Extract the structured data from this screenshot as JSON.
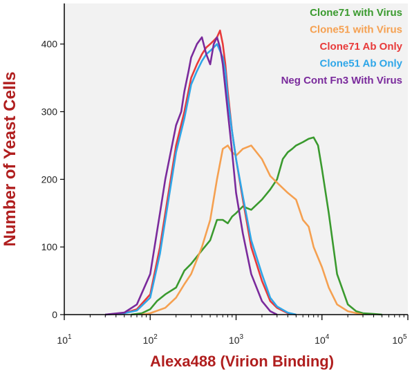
{
  "chart_data": {
    "type": "line",
    "title": "",
    "xlabel": "Alexa488 (Virion Binding)",
    "ylabel": "Number of Yeast Cells",
    "x_scale": "log",
    "xlim": [
      10,
      100000
    ],
    "ylim": [
      0,
      460
    ],
    "x_ticks": [
      10,
      100,
      1000,
      10000,
      100000
    ],
    "x_tick_labels": [
      {
        "base": "10",
        "exp": "1"
      },
      {
        "base": "10",
        "exp": "2"
      },
      {
        "base": "10",
        "exp": "3"
      },
      {
        "base": "10",
        "exp": "4"
      },
      {
        "base": "10",
        "exp": "5"
      }
    ],
    "y_ticks": [
      0,
      100,
      200,
      300,
      400
    ],
    "y_tick_labels": [
      "0",
      "100",
      "200",
      "300",
      "400"
    ],
    "grid": false,
    "background": "#f2f2f2",
    "legend_position": "top-right",
    "series": [
      {
        "name": "Clone71 with Virus",
        "color": "#3a9a2e",
        "x": [
          60,
          80,
          100,
          120,
          150,
          200,
          250,
          300,
          400,
          500,
          600,
          700,
          800,
          900,
          1000,
          1200,
          1500,
          2000,
          2500,
          3000,
          3500,
          4000,
          4500,
          5000,
          6000,
          7000,
          8000,
          9000,
          10000,
          12000,
          15000,
          20000,
          25000,
          30000,
          40000,
          50000
        ],
        "y": [
          0,
          2,
          8,
          20,
          30,
          40,
          65,
          75,
          95,
          110,
          140,
          140,
          135,
          145,
          150,
          160,
          155,
          170,
          185,
          200,
          230,
          240,
          245,
          250,
          255,
          260,
          262,
          250,
          215,
          150,
          60,
          15,
          5,
          2,
          1,
          0
        ]
      },
      {
        "name": "Clone51 with Virus",
        "color": "#f5a050",
        "x": [
          80,
          100,
          150,
          200,
          250,
          300,
          400,
          500,
          600,
          700,
          800,
          900,
          1000,
          1200,
          1500,
          2000,
          2500,
          3000,
          4000,
          5000,
          6000,
          7000,
          8000,
          10000,
          12000,
          15000,
          20000,
          30000
        ],
        "y": [
          0,
          2,
          10,
          25,
          45,
          60,
          100,
          140,
          200,
          245,
          250,
          240,
          235,
          245,
          250,
          230,
          205,
          195,
          180,
          170,
          140,
          130,
          100,
          70,
          40,
          15,
          5,
          0
        ]
      },
      {
        "name": "Clone71 Ab Only",
        "color": "#e83a3a",
        "x": [
          30,
          50,
          70,
          100,
          130,
          150,
          200,
          250,
          300,
          350,
          400,
          450,
          500,
          550,
          600,
          650,
          700,
          750,
          800,
          900,
          1000,
          1200,
          1500,
          2000,
          2500,
          3000,
          4000,
          5000
        ],
        "y": [
          0,
          2,
          8,
          30,
          100,
          150,
          250,
          300,
          350,
          370,
          385,
          395,
          400,
          405,
          410,
          420,
          400,
          370,
          330,
          270,
          230,
          170,
          100,
          50,
          20,
          10,
          2,
          0
        ]
      },
      {
        "name": "Clone51 Ab Only",
        "color": "#2ea6e8",
        "x": [
          30,
          50,
          70,
          100,
          130,
          150,
          200,
          250,
          300,
          350,
          400,
          450,
          500,
          550,
          600,
          650,
          700,
          750,
          800,
          900,
          1000,
          1200,
          1500,
          2000,
          2500,
          3000,
          4000,
          5000
        ],
        "y": [
          0,
          2,
          6,
          25,
          90,
          140,
          240,
          290,
          340,
          360,
          375,
          385,
          390,
          395,
          400,
          390,
          380,
          360,
          320,
          270,
          230,
          175,
          110,
          60,
          25,
          12,
          3,
          0
        ]
      },
      {
        "name": "Neg Cont Fn3 With Virus",
        "color": "#7a2a9c",
        "x": [
          30,
          50,
          70,
          100,
          130,
          150,
          200,
          230,
          250,
          280,
          300,
          350,
          400,
          450,
          500,
          550,
          600,
          650,
          700,
          800,
          900,
          1000,
          1200,
          1500,
          2000,
          2500,
          3000
        ],
        "y": [
          0,
          3,
          15,
          60,
          150,
          200,
          280,
          300,
          330,
          360,
          380,
          400,
          410,
          385,
          370,
          400,
          410,
          395,
          370,
          300,
          240,
          180,
          120,
          60,
          20,
          5,
          0
        ]
      }
    ]
  }
}
